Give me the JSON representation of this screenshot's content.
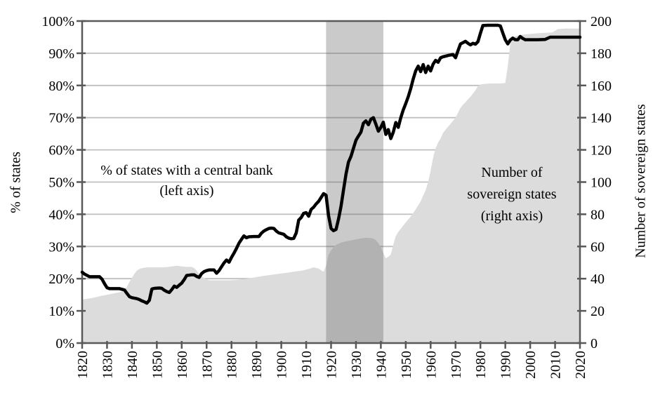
{
  "figure": {
    "background": "#ffffff"
  },
  "chart_data": {
    "type": "combo-line-area",
    "title": "",
    "x_axis": {
      "min": 1820,
      "max": 2020,
      "tick_step": 10,
      "tick_labels": [
        "1820",
        "1830",
        "1840",
        "1850",
        "1860",
        "1870",
        "1880",
        "1890",
        "1900",
        "1910",
        "1920",
        "1930",
        "1940",
        "1950",
        "1960",
        "1970",
        "1980",
        "1990",
        "2000",
        "2010",
        "2020"
      ]
    },
    "y_left": {
      "label": "% of  states",
      "min": 0,
      "max": 100,
      "tick_step": 10,
      "tick_labels": [
        "0%",
        "10%",
        "20%",
        "30%",
        "40%",
        "50%",
        "60%",
        "70%",
        "80%",
        "90%",
        "100%"
      ]
    },
    "y_right": {
      "label": "Number of sovereign states",
      "min": 0,
      "max": 200,
      "tick_step": 20,
      "tick_labels": [
        "0",
        "20",
        "40",
        "60",
        "80",
        "100",
        "120",
        "140",
        "160",
        "180",
        "200"
      ]
    },
    "shaded_band": {
      "from_year": 1918,
      "to_year": 1941
    },
    "annotations": {
      "left": {
        "line1": "% of states with a central bank",
        "line2": "(left axis)"
      },
      "right": {
        "line1": "Number of",
        "line2": "sovereign states",
        "line3": "(right axis)"
      }
    },
    "colors": {
      "line": "#000000",
      "area": "#dcdcdc",
      "band": "rgba(89,89,89,0.32)",
      "gridline": "#bfbfbf",
      "axis": "#595959",
      "text": "#000000"
    },
    "series": [
      {
        "name": "% of states with a central bank",
        "axis": "left",
        "type": "line",
        "points": [
          [
            1820,
            22
          ],
          [
            1821,
            21.4
          ],
          [
            1822,
            21
          ],
          [
            1823,
            20.6
          ],
          [
            1825,
            20.6
          ],
          [
            1827,
            20.6
          ],
          [
            1828,
            19.8
          ],
          [
            1829,
            18.4
          ],
          [
            1830,
            17.2
          ],
          [
            1831,
            16.9
          ],
          [
            1833,
            16.9
          ],
          [
            1835,
            16.9
          ],
          [
            1837,
            16.5
          ],
          [
            1838,
            15.4
          ],
          [
            1839,
            14.4
          ],
          [
            1840,
            14.1
          ],
          [
            1842,
            13.8
          ],
          [
            1843,
            13.5
          ],
          [
            1844,
            13.1
          ],
          [
            1845,
            12.8
          ],
          [
            1846,
            12.4
          ],
          [
            1847,
            13.3
          ],
          [
            1848,
            16.8
          ],
          [
            1849,
            17
          ],
          [
            1851,
            17.1
          ],
          [
            1852,
            17
          ],
          [
            1853,
            16.4
          ],
          [
            1854,
            16
          ],
          [
            1855,
            15.7
          ],
          [
            1856,
            16.6
          ],
          [
            1857,
            17.7
          ],
          [
            1858,
            17.3
          ],
          [
            1859,
            18
          ],
          [
            1860,
            18.6
          ],
          [
            1861,
            19.7
          ],
          [
            1862,
            21
          ],
          [
            1863,
            21.1
          ],
          [
            1864,
            21.2
          ],
          [
            1865,
            21.2
          ],
          [
            1866,
            20.7
          ],
          [
            1867,
            20.4
          ],
          [
            1868,
            21.6
          ],
          [
            1869,
            22.2
          ],
          [
            1870,
            22.5
          ],
          [
            1871,
            22.7
          ],
          [
            1873,
            22.7
          ],
          [
            1874,
            21.7
          ],
          [
            1875,
            22.5
          ],
          [
            1876,
            23.7
          ],
          [
            1877,
            24.9
          ],
          [
            1878,
            25.8
          ],
          [
            1879,
            25.1
          ],
          [
            1880,
            26.6
          ],
          [
            1881,
            27.9
          ],
          [
            1882,
            29.4
          ],
          [
            1883,
            31
          ],
          [
            1884,
            32.2
          ],
          [
            1885,
            33.3
          ],
          [
            1886,
            32.7
          ],
          [
            1887,
            33
          ],
          [
            1889,
            33.1
          ],
          [
            1891,
            33.1
          ],
          [
            1892,
            34.1
          ],
          [
            1893,
            34.8
          ],
          [
            1894,
            35.2
          ],
          [
            1895,
            35.6
          ],
          [
            1896,
            35.7
          ],
          [
            1897,
            35.6
          ],
          [
            1898,
            34.8
          ],
          [
            1899,
            34.2
          ],
          [
            1900,
            34
          ],
          [
            1901,
            33.8
          ],
          [
            1902,
            33
          ],
          [
            1903,
            32.6
          ],
          [
            1904,
            32.4
          ],
          [
            1905,
            32.5
          ],
          [
            1906,
            34.2
          ],
          [
            1907,
            38.2
          ],
          [
            1908,
            39
          ],
          [
            1909,
            40.3
          ],
          [
            1910,
            40.5
          ],
          [
            1911,
            39.4
          ],
          [
            1912,
            41.5
          ],
          [
            1913,
            42.2
          ],
          [
            1914,
            43.2
          ],
          [
            1915,
            44
          ],
          [
            1916,
            45.2
          ],
          [
            1917,
            46.4
          ],
          [
            1918,
            45.9
          ],
          [
            1919,
            39.5
          ],
          [
            1920,
            35.6
          ],
          [
            1921,
            34.9
          ],
          [
            1922,
            35.3
          ],
          [
            1923,
            38.5
          ],
          [
            1924,
            42.5
          ],
          [
            1925,
            47.5
          ],
          [
            1926,
            52.5
          ],
          [
            1927,
            56.2
          ],
          [
            1928,
            58
          ],
          [
            1929,
            60.5
          ],
          [
            1930,
            63
          ],
          [
            1931,
            64.3
          ],
          [
            1932,
            65.5
          ],
          [
            1933,
            68.3
          ],
          [
            1934,
            69
          ],
          [
            1935,
            67.8
          ],
          [
            1936,
            69.5
          ],
          [
            1937,
            70
          ],
          [
            1938,
            68
          ],
          [
            1939,
            65.8
          ],
          [
            1940,
            67
          ],
          [
            1941,
            68.6
          ],
          [
            1942,
            64.8
          ],
          [
            1943,
            66.3
          ],
          [
            1944,
            63.5
          ],
          [
            1945,
            65.5
          ],
          [
            1946,
            68.5
          ],
          [
            1947,
            67
          ],
          [
            1948,
            70
          ],
          [
            1949,
            72.4
          ],
          [
            1950,
            74.4
          ],
          [
            1951,
            76.5
          ],
          [
            1952,
            79
          ],
          [
            1953,
            82
          ],
          [
            1954,
            84.5
          ],
          [
            1955,
            86
          ],
          [
            1956,
            84.3
          ],
          [
            1957,
            86.5
          ],
          [
            1958,
            84
          ],
          [
            1959,
            86
          ],
          [
            1960,
            84.5
          ],
          [
            1961,
            86.6
          ],
          [
            1962,
            87.8
          ],
          [
            1963,
            87.2
          ],
          [
            1964,
            88.6
          ],
          [
            1965,
            88.9
          ],
          [
            1967,
            89.3
          ],
          [
            1969,
            89.6
          ],
          [
            1970,
            88.6
          ],
          [
            1971,
            90.8
          ],
          [
            1972,
            92.9
          ],
          [
            1973,
            93.3
          ],
          [
            1974,
            93.7
          ],
          [
            1975,
            93.1
          ],
          [
            1976,
            92.6
          ],
          [
            1977,
            93.1
          ],
          [
            1978,
            92.8
          ],
          [
            1979,
            93.6
          ],
          [
            1980,
            96.2
          ],
          [
            1981,
            98.6
          ],
          [
            1983,
            98.7
          ],
          [
            1985,
            98.7
          ],
          [
            1987,
            98.7
          ],
          [
            1988,
            98.5
          ],
          [
            1989,
            96.3
          ],
          [
            1990,
            94.2
          ],
          [
            1991,
            92.9
          ],
          [
            1992,
            94.1
          ],
          [
            1993,
            94.7
          ],
          [
            1994,
            94.2
          ],
          [
            1995,
            94.2
          ],
          [
            1996,
            95.2
          ],
          [
            1997,
            94.6
          ],
          [
            1998,
            94.2
          ],
          [
            2000,
            94.2
          ],
          [
            2003,
            94.2
          ],
          [
            2006,
            94.3
          ],
          [
            2008,
            95
          ],
          [
            2010,
            95
          ],
          [
            2014,
            95
          ],
          [
            2017,
            95
          ],
          [
            2020,
            95
          ]
        ]
      },
      {
        "name": "Number of sovereign states",
        "axis": "right",
        "type": "area",
        "points": [
          [
            1820,
            27
          ],
          [
            1822,
            27.5
          ],
          [
            1824,
            28
          ],
          [
            1826,
            28.7
          ],
          [
            1828,
            29.4
          ],
          [
            1830,
            30
          ],
          [
            1832,
            30.6
          ],
          [
            1834,
            31.2
          ],
          [
            1836,
            32
          ],
          [
            1837,
            33
          ],
          [
            1838,
            35
          ],
          [
            1839,
            38
          ],
          [
            1840,
            40.5
          ],
          [
            1841,
            43
          ],
          [
            1842,
            45
          ],
          [
            1843,
            46
          ],
          [
            1844,
            46.5
          ],
          [
            1846,
            47
          ],
          [
            1850,
            47
          ],
          [
            1852,
            47
          ],
          [
            1854,
            47.2
          ],
          [
            1856,
            47.6
          ],
          [
            1858,
            48
          ],
          [
            1860,
            47.6
          ],
          [
            1862,
            47.3
          ],
          [
            1864,
            47.3
          ],
          [
            1865,
            46.6
          ],
          [
            1866,
            45
          ],
          [
            1867,
            43
          ],
          [
            1868,
            41.5
          ],
          [
            1869,
            40.4
          ],
          [
            1870,
            39.6
          ],
          [
            1871,
            39
          ],
          [
            1873,
            39
          ],
          [
            1875,
            39
          ],
          [
            1877,
            39
          ],
          [
            1879,
            39
          ],
          [
            1881,
            39.1
          ],
          [
            1883,
            39.4
          ],
          [
            1885,
            39.7
          ],
          [
            1887,
            40.2
          ],
          [
            1889,
            40.7
          ],
          [
            1891,
            41.2
          ],
          [
            1893,
            41.8
          ],
          [
            1895,
            42.2
          ],
          [
            1897,
            42.6
          ],
          [
            1899,
            43
          ],
          [
            1901,
            43.4
          ],
          [
            1903,
            43.8
          ],
          [
            1905,
            44.3
          ],
          [
            1907,
            44.7
          ],
          [
            1909,
            45.2
          ],
          [
            1911,
            46
          ],
          [
            1913,
            47
          ],
          [
            1915,
            46.3
          ],
          [
            1916,
            45.2
          ],
          [
            1917,
            44.3
          ],
          [
            1918,
            48
          ],
          [
            1919,
            55
          ],
          [
            1920,
            57.5
          ],
          [
            1921,
            59.5
          ],
          [
            1922,
            61
          ],
          [
            1924,
            62.4
          ],
          [
            1926,
            63.2
          ],
          [
            1928,
            63.8
          ],
          [
            1930,
            64.4
          ],
          [
            1932,
            65
          ],
          [
            1934,
            65.4
          ],
          [
            1936,
            65.2
          ],
          [
            1937,
            64.8
          ],
          [
            1938,
            64
          ],
          [
            1939,
            62
          ],
          [
            1940,
            59.5
          ],
          [
            1941,
            56
          ],
          [
            1942,
            52.7
          ],
          [
            1943,
            53.6
          ],
          [
            1944,
            55
          ],
          [
            1945,
            61
          ],
          [
            1946,
            66.5
          ],
          [
            1947,
            69
          ],
          [
            1948,
            71
          ],
          [
            1949,
            73
          ],
          [
            1950,
            75
          ],
          [
            1952,
            78.5
          ],
          [
            1954,
            83
          ],
          [
            1956,
            88
          ],
          [
            1958,
            95
          ],
          [
            1959,
            100
          ],
          [
            1960,
            107
          ],
          [
            1961,
            115
          ],
          [
            1962,
            121
          ],
          [
            1963,
            124.5
          ],
          [
            1964,
            127
          ],
          [
            1965,
            130.5
          ],
          [
            1966,
            132.5
          ],
          [
            1967,
            134.3
          ],
          [
            1968,
            136.2
          ],
          [
            1969,
            138
          ],
          [
            1970,
            140
          ],
          [
            1971,
            143
          ],
          [
            1972,
            146
          ],
          [
            1973,
            148
          ],
          [
            1974,
            149.6
          ],
          [
            1975,
            151.4
          ],
          [
            1976,
            153
          ],
          [
            1977,
            155
          ],
          [
            1978,
            157
          ],
          [
            1979,
            159.6
          ],
          [
            1980,
            160.6
          ],
          [
            1982,
            161
          ],
          [
            1984,
            161.2
          ],
          [
            1986,
            161.2
          ],
          [
            1988,
            161.2
          ],
          [
            1990,
            161.5
          ],
          [
            1991,
            172
          ],
          [
            1992,
            186
          ],
          [
            1993,
            189.5
          ],
          [
            1994,
            190.5
          ],
          [
            1995,
            191
          ],
          [
            1997,
            191.6
          ],
          [
            2000,
            192
          ],
          [
            2003,
            192.4
          ],
          [
            2006,
            192.7
          ],
          [
            2009,
            193
          ],
          [
            2011,
            195
          ],
          [
            2014,
            195.3
          ],
          [
            2017,
            195.3
          ],
          [
            2020,
            195.3
          ]
        ]
      }
    ]
  }
}
